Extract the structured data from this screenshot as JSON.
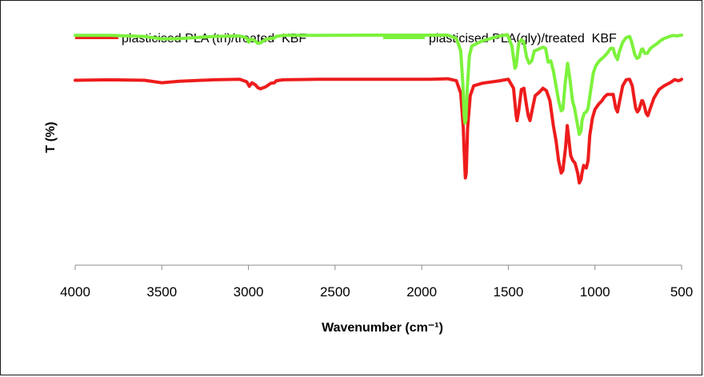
{
  "chart_data": {
    "type": "line",
    "title": "",
    "xlabel": "Wavenumber (cm⁻¹)",
    "ylabel": "T (%)",
    "xlim": [
      4000,
      500
    ],
    "ylim": [
      0,
      100
    ],
    "x_reversed": true,
    "grid": false,
    "legend_position": "top",
    "xticks": [
      "4000",
      "3500",
      "3000",
      "2500",
      "2000",
      "1500",
      "1000",
      "500"
    ],
    "colors": {
      "tri": "#ee1c1c",
      "gly": "#7cf23c"
    },
    "series": [
      {
        "name": "plasticised PLA (tri)/treated  KBF",
        "color": "#ee1c1c",
        "points": [
          [
            4000,
            74.2
          ],
          [
            3800,
            74.4
          ],
          [
            3600,
            74.2
          ],
          [
            3500,
            73.2
          ],
          [
            3400,
            73.8
          ],
          [
            3200,
            74.4
          ],
          [
            3050,
            74.6
          ],
          [
            3010,
            73.6
          ],
          [
            2995,
            71.8
          ],
          [
            2980,
            73.2
          ],
          [
            2960,
            72.4
          ],
          [
            2945,
            71.2
          ],
          [
            2930,
            70.8
          ],
          [
            2900,
            71.6
          ],
          [
            2870,
            73.0
          ],
          [
            2850,
            73.2
          ],
          [
            2840,
            74.0
          ],
          [
            2800,
            74.4
          ],
          [
            2600,
            74.6
          ],
          [
            2400,
            74.6
          ],
          [
            2200,
            74.6
          ],
          [
            1950,
            74.6
          ],
          [
            1850,
            74.8
          ],
          [
            1800,
            74.0
          ],
          [
            1775,
            69.0
          ],
          [
            1760,
            55.0
          ],
          [
            1752,
            40.0
          ],
          [
            1748,
            35.0
          ],
          [
            1743,
            37.0
          ],
          [
            1735,
            55.0
          ],
          [
            1720,
            68.0
          ],
          [
            1700,
            72.0
          ],
          [
            1650,
            73.0
          ],
          [
            1550,
            74.0
          ],
          [
            1500,
            74.6
          ],
          [
            1470,
            71.0
          ],
          [
            1455,
            60.0
          ],
          [
            1450,
            58.0
          ],
          [
            1440,
            62.0
          ],
          [
            1425,
            70.5
          ],
          [
            1410,
            71.0
          ],
          [
            1395,
            64.0
          ],
          [
            1385,
            60.0
          ],
          [
            1375,
            58.0
          ],
          [
            1360,
            63.0
          ],
          [
            1345,
            68.0
          ],
          [
            1320,
            69.5
          ],
          [
            1300,
            71.0
          ],
          [
            1280,
            70.0
          ],
          [
            1260,
            66.0
          ],
          [
            1240,
            56.0
          ],
          [
            1225,
            50.0
          ],
          [
            1210,
            42.0
          ],
          [
            1195,
            37.0
          ],
          [
            1185,
            38.0
          ],
          [
            1170,
            47.0
          ],
          [
            1160,
            56.0
          ],
          [
            1150,
            50.0
          ],
          [
            1140,
            44.0
          ],
          [
            1128,
            42.0
          ],
          [
            1115,
            41.0
          ],
          [
            1100,
            37.0
          ],
          [
            1090,
            33.0
          ],
          [
            1080,
            34.5
          ],
          [
            1075,
            37.0
          ],
          [
            1065,
            40.0
          ],
          [
            1050,
            39.0
          ],
          [
            1040,
            42.0
          ],
          [
            1030,
            52.0
          ],
          [
            1015,
            59.0
          ],
          [
            1000,
            62.5
          ],
          [
            980,
            64.5
          ],
          [
            960,
            66.0
          ],
          [
            945,
            67.5
          ],
          [
            930,
            68.5
          ],
          [
            910,
            68.5
          ],
          [
            895,
            68.5
          ],
          [
            880,
            63.0
          ],
          [
            870,
            61.5
          ],
          [
            860,
            65.0
          ],
          [
            840,
            72.0
          ],
          [
            820,
            74.4
          ],
          [
            800,
            74.6
          ],
          [
            785,
            72.0
          ],
          [
            765,
            63.0
          ],
          [
            755,
            61.5
          ],
          [
            745,
            62.5
          ],
          [
            730,
            66.0
          ],
          [
            725,
            66.0
          ],
          [
            715,
            64.0
          ],
          [
            705,
            61.0
          ],
          [
            695,
            60.0
          ],
          [
            680,
            63.0
          ],
          [
            660,
            67.0
          ],
          [
            630,
            70.5
          ],
          [
            600,
            72.0
          ],
          [
            560,
            73.5
          ],
          [
            540,
            74.5
          ],
          [
            520,
            74.0
          ],
          [
            505,
            74.3
          ],
          [
            500,
            74.6
          ]
        ]
      },
      {
        "name": "plasticised PLA(gly)/treated  KBF",
        "color": "#7cf23c",
        "points": [
          [
            4000,
            92.2
          ],
          [
            3800,
            92.2
          ],
          [
            3600,
            91.8
          ],
          [
            3500,
            90.8
          ],
          [
            3400,
            90.9
          ],
          [
            3200,
            91.8
          ],
          [
            3050,
            92.0
          ],
          [
            3010,
            91.2
          ],
          [
            2998,
            89.5
          ],
          [
            2985,
            90.8
          ],
          [
            2965,
            90.2
          ],
          [
            2945,
            89.0
          ],
          [
            2930,
            89.2
          ],
          [
            2900,
            90.6
          ],
          [
            2870,
            91.0
          ],
          [
            2850,
            91.2
          ],
          [
            2840,
            91.8
          ],
          [
            2800,
            92.2
          ],
          [
            2600,
            92.2
          ],
          [
            2300,
            92.3
          ],
          [
            2000,
            92.3
          ],
          [
            1850,
            92.3
          ],
          [
            1800,
            91.0
          ],
          [
            1775,
            86.0
          ],
          [
            1762,
            72.0
          ],
          [
            1755,
            60.0
          ],
          [
            1750,
            57.0
          ],
          [
            1745,
            58.5
          ],
          [
            1738,
            70.0
          ],
          [
            1725,
            84.0
          ],
          [
            1710,
            88.0
          ],
          [
            1650,
            90.0
          ],
          [
            1550,
            92.0
          ],
          [
            1505,
            92.5
          ],
          [
            1480,
            88.0
          ],
          [
            1462,
            79.0
          ],
          [
            1455,
            80.0
          ],
          [
            1440,
            89.0
          ],
          [
            1425,
            90.5
          ],
          [
            1410,
            89.5
          ],
          [
            1395,
            83.5
          ],
          [
            1380,
            81.0
          ],
          [
            1365,
            82.0
          ],
          [
            1350,
            86.0
          ],
          [
            1330,
            86.5
          ],
          [
            1300,
            87.5
          ],
          [
            1285,
            87.0
          ],
          [
            1270,
            81.5
          ],
          [
            1255,
            82.0
          ],
          [
            1240,
            78.0
          ],
          [
            1225,
            72.0
          ],
          [
            1210,
            66.0
          ],
          [
            1195,
            62.0
          ],
          [
            1185,
            62.5
          ],
          [
            1172,
            73.0
          ],
          [
            1158,
            81.0
          ],
          [
            1145,
            75.0
          ],
          [
            1130,
            66.0
          ],
          [
            1118,
            63.0
          ],
          [
            1100,
            56.0
          ],
          [
            1090,
            52.5
          ],
          [
            1080,
            54.0
          ],
          [
            1075,
            58.0
          ],
          [
            1062,
            61.0
          ],
          [
            1050,
            61.5
          ],
          [
            1040,
            63.0
          ],
          [
            1025,
            70.0
          ],
          [
            1010,
            77.0
          ],
          [
            995,
            80.0
          ],
          [
            975,
            82.0
          ],
          [
            950,
            83.5
          ],
          [
            930,
            85.0
          ],
          [
            910,
            87.0
          ],
          [
            895,
            87.0
          ],
          [
            885,
            84.5
          ],
          [
            870,
            82.5
          ],
          [
            860,
            85.5
          ],
          [
            840,
            89.5
          ],
          [
            820,
            91.3
          ],
          [
            800,
            91.8
          ],
          [
            790,
            90.0
          ],
          [
            770,
            84.5
          ],
          [
            758,
            83.0
          ],
          [
            745,
            83.5
          ],
          [
            732,
            86.5
          ],
          [
            725,
            86.8
          ],
          [
            712,
            85.0
          ],
          [
            698,
            85.0
          ],
          [
            680,
            87.0
          ],
          [
            660,
            88.0
          ],
          [
            640,
            89.0
          ],
          [
            620,
            90.2
          ],
          [
            600,
            91.0
          ],
          [
            580,
            91.5
          ],
          [
            560,
            92.0
          ],
          [
            545,
            92.2
          ],
          [
            530,
            92.0
          ],
          [
            510,
            92.2
          ],
          [
            500,
            92.3
          ]
        ]
      }
    ]
  }
}
